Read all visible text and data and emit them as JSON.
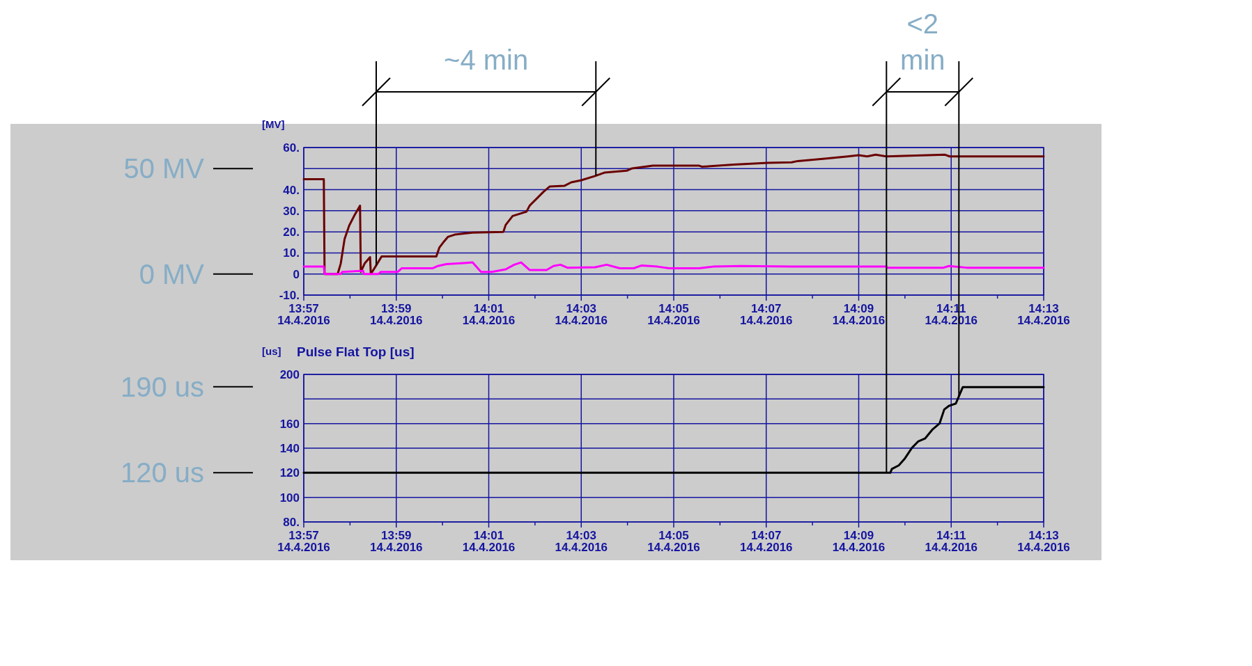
{
  "chart_data": [
    {
      "type": "line",
      "ylabel": "[MV]",
      "xlim": [
        "2016-04-14T13:57",
        "2016-04-14T14:13"
      ],
      "ylim": [
        -10,
        60
      ],
      "xticks": [
        {
          "value": "2016-04-14T13:57",
          "label": "13:57\n14.4.2016"
        },
        {
          "value": "2016-04-14T13:58",
          "label": null
        },
        {
          "value": "2016-04-14T13:59",
          "label": "13:59\n14.4.2016"
        },
        {
          "value": "2016-04-14T14:00",
          "label": null
        },
        {
          "value": "2016-04-14T14:01",
          "label": "14:01\n14.4.2016"
        },
        {
          "value": "2016-04-14T14:02",
          "label": null
        },
        {
          "value": "2016-04-14T14:03",
          "label": "14:03\n14.4.2016"
        },
        {
          "value": "2016-04-14T14:04",
          "label": null
        },
        {
          "value": "2016-04-14T14:05",
          "label": "14:05\n14.4.2016"
        },
        {
          "value": "2016-04-14T14:06",
          "label": null
        },
        {
          "value": "2016-04-14T14:07",
          "label": "14:07\n14.4.2016"
        },
        {
          "value": "2016-04-14T14:08",
          "label": null
        },
        {
          "value": "2016-04-14T14:09",
          "label": "14:09\n14.4.2016"
        },
        {
          "value": "2016-04-14T14:10",
          "label": null
        },
        {
          "value": "2016-04-14T14:11",
          "label": "14:11\n14.4.2016"
        },
        {
          "value": "2016-04-14T14:12",
          "label": null
        },
        {
          "value": "2016-04-14T14:13",
          "label": "14:13\n14.4.2016"
        }
      ],
      "yticks": [
        {
          "value": 60,
          "label": "60."
        },
        {
          "value": 50,
          "label": null
        },
        {
          "value": 40,
          "label": "40."
        },
        {
          "value": 30,
          "label": "30."
        },
        {
          "value": 20,
          "label": "20."
        },
        {
          "value": 10,
          "label": "10."
        },
        0,
        {
          "value": -10,
          "label": "-10."
        }
      ],
      "grid": true,
      "series": [
        {
          "color": "#6b0000",
          "x": [
            "2016-04-14T13:57:00",
            "2016-04-14T13:57:26",
            "2016-04-14T13:57:27",
            "2016-04-14T13:57:44",
            "2016-04-14T13:57:48",
            "2016-04-14T13:57:53",
            "2016-04-14T13:57:59",
            "2016-04-14T13:58:06",
            "2016-04-14T13:58:13",
            "2016-04-14T13:58:14",
            "2016-04-14T13:58:19",
            "2016-04-14T13:58:26",
            "2016-04-14T13:58:27",
            "2016-04-14T13:58:33",
            "2016-04-14T13:58:41",
            "2016-04-14T13:59:52",
            "2016-04-14T13:59:56",
            "2016-04-14T14:00:01",
            "2016-04-14T14:00:07",
            "2016-04-14T14:00:16",
            "2016-04-14T14:00:39",
            "2016-04-14T14:01:19",
            "2016-04-14T14:01:22",
            "2016-04-14T14:01:31",
            "2016-04-14T14:01:49",
            "2016-04-14T14:01:53",
            "2016-04-14T14:02:02",
            "2016-04-14T14:02:11",
            "2016-04-14T14:02:19",
            "2016-04-14T14:02:38",
            "2016-04-14T14:02:47",
            "2016-04-14T14:03:00",
            "2016-04-14T14:03:18",
            "2016-04-14T14:03:30",
            "2016-04-14T14:03:59",
            "2016-04-14T14:04:06",
            "2016-04-14T14:04:33",
            "2016-04-14T14:05:33",
            "2016-04-14T14:05:37",
            "2016-04-14T14:06:18",
            "2016-04-14T14:07:02",
            "2016-04-14T14:07:33",
            "2016-04-14T14:07:41",
            "2016-04-14T14:08:16",
            "2016-04-14T14:08:46",
            "2016-04-14T14:09:00",
            "2016-04-14T14:09:11",
            "2016-04-14T14:09:22",
            "2016-04-14T14:09:36",
            "2016-04-14T14:10:52",
            "2016-04-14T14:10:58",
            "2016-04-14T14:13:00"
          ],
          "values": [
            45,
            45,
            0,
            0,
            5,
            16.7,
            23,
            28,
            32.4,
            1,
            5,
            8,
            0,
            3.5,
            8.3,
            8.3,
            12.6,
            15,
            17.6,
            18.7,
            19.6,
            20,
            23.3,
            27.5,
            29.6,
            32.4,
            35.7,
            39,
            41.5,
            41.8,
            43.5,
            44.5,
            46.5,
            48.1,
            49,
            50.1,
            51.4,
            51.4,
            50.9,
            51.9,
            52.7,
            53,
            53.6,
            54.7,
            55.8,
            56.4,
            55.8,
            56.6,
            55.8,
            56.6,
            55.8,
            55.8
          ]
        },
        {
          "color": "#ff00ff",
          "x": [
            "2016-04-14T13:57:00",
            "2016-04-14T13:57:26",
            "2016-04-14T13:57:27",
            "2016-04-14T13:57:48",
            "2016-04-14T13:57:50",
            "2016-04-14T13:58:17",
            "2016-04-14T13:58:18",
            "2016-04-14T13:58:37",
            "2016-04-14T13:58:40",
            "2016-04-14T13:59:02",
            "2016-04-14T13:59:07",
            "2016-04-14T13:59:47",
            "2016-04-14T13:59:54",
            "2016-04-14T14:00:05",
            "2016-04-14T14:00:28",
            "2016-04-14T14:00:39",
            "2016-04-14T14:00:50",
            "2016-04-14T14:01:04",
            "2016-04-14T14:01:22",
            "2016-04-14T14:01:33",
            "2016-04-14T14:01:42",
            "2016-04-14T14:01:53",
            "2016-04-14T14:02:15",
            "2016-04-14T14:02:24",
            "2016-04-14T14:02:33",
            "2016-04-14T14:02:42",
            "2016-04-14T14:03:18",
            "2016-04-14T14:03:33",
            "2016-04-14T14:03:50",
            "2016-04-14T14:04:08",
            "2016-04-14T14:04:18",
            "2016-04-14T14:04:39",
            "2016-04-14T14:04:54",
            "2016-04-14T14:05:33",
            "2016-04-14T14:05:51",
            "2016-04-14T14:06:27",
            "2016-04-14T14:07:33",
            "2016-04-14T14:09:36",
            "2016-04-14T14:09:37",
            "2016-04-14T14:10:50",
            "2016-04-14T14:10:57",
            "2016-04-14T14:11:20",
            "2016-04-14T14:13:00"
          ],
          "values": [
            3.5,
            3.5,
            0,
            0,
            1,
            1.5,
            0,
            0,
            1,
            1,
            2.7,
            2.7,
            3.8,
            4.7,
            5.2,
            5.5,
            1,
            1,
            2.2,
            4.4,
            5.5,
            1.9,
            1.9,
            3.8,
            4.4,
            3,
            3.2,
            4.4,
            2.7,
            2.7,
            4,
            3.5,
            2.7,
            2.7,
            3.5,
            3.8,
            3.5,
            3.5,
            3,
            3,
            3.8,
            3,
            3
          ]
        }
      ],
      "ref_lines": [
        {
          "axis": "y",
          "value": 50,
          "label": "50 MV"
        },
        {
          "axis": "y",
          "value": 0,
          "label": "0 MV"
        },
        {
          "axis": "x",
          "value": "2016-04-14T13:58:34",
          "label": null
        },
        {
          "axis": "x",
          "value": "2016-04-14T14:03:19",
          "label": null
        }
      ],
      "annotations": [
        "~4 min"
      ]
    },
    {
      "type": "line",
      "title": "Pulse Flat Top [us]",
      "ylabel": "[us]",
      "xlim": [
        "2016-04-14T13:57",
        "2016-04-14T14:13"
      ],
      "ylim": [
        80,
        200
      ],
      "xticks": [
        {
          "value": "2016-04-14T13:57",
          "label": "13:57\n14.4.2016"
        },
        {
          "value": "2016-04-14T13:58",
          "label": null
        },
        {
          "value": "2016-04-14T13:59",
          "label": "13:59\n14.4.2016"
        },
        {
          "value": "2016-04-14T14:00",
          "label": null
        },
        {
          "value": "2016-04-14T14:01",
          "label": "14:01\n14.4.2016"
        },
        {
          "value": "2016-04-14T14:02",
          "label": null
        },
        {
          "value": "2016-04-14T14:03",
          "label": "14:03\n14.4.2016"
        },
        {
          "value": "2016-04-14T14:04",
          "label": null
        },
        {
          "value": "2016-04-14T14:05",
          "label": "14:05\n14.4.2016"
        },
        {
          "value": "2016-04-14T14:06",
          "label": null
        },
        {
          "value": "2016-04-14T14:07",
          "label": "14:07\n14.4.2016"
        },
        {
          "value": "2016-04-14T14:08",
          "label": null
        },
        {
          "value": "2016-04-14T14:09",
          "label": "14:09\n14.4.2016"
        },
        {
          "value": "2016-04-14T14:10",
          "label": null
        },
        {
          "value": "2016-04-14T14:11",
          "label": "14:11\n14.4.2016"
        },
        {
          "value": "2016-04-14T14:12",
          "label": null
        },
        {
          "value": "2016-04-14T14:13",
          "label": "14:13\n14.4.2016"
        }
      ],
      "yticks": [
        200,
        {
          "value": 180,
          "label": null
        },
        160,
        140,
        120,
        100,
        {
          "value": 80,
          "label": "80."
        }
      ],
      "grid": true,
      "series": [
        {
          "color": "#000000",
          "x": [
            "2016-04-14T13:57:00",
            "2016-04-14T14:09:41",
            "2016-04-14T14:09:43",
            "2016-04-14T14:09:52",
            "2016-04-14T14:10:00",
            "2016-04-14T14:10:09",
            "2016-04-14T14:10:17",
            "2016-04-14T14:10:26",
            "2016-04-14T14:10:36",
            "2016-04-14T14:10:45",
            "2016-04-14T14:10:51",
            "2016-04-14T14:10:57",
            "2016-04-14T14:11:06",
            "2016-04-14T14:11:15",
            "2016-04-14T14:13:00"
          ],
          "values": [
            120,
            120,
            123.1,
            126,
            131.7,
            140.2,
            145.4,
            147.8,
            155.4,
            160.2,
            171.5,
            174.4,
            176.3,
            189.6,
            189.6
          ]
        }
      ],
      "ref_lines": [
        {
          "axis": "y",
          "value": 190,
          "label": "190 us"
        },
        {
          "axis": "y",
          "value": 120,
          "label": "120 us"
        },
        {
          "axis": "x",
          "value": "2016-04-14T14:09:36",
          "label": null
        },
        {
          "axis": "x",
          "value": "2016-04-14T14:11:10",
          "label": null
        }
      ],
      "annotations": [
        "<2 min"
      ]
    }
  ]
}
